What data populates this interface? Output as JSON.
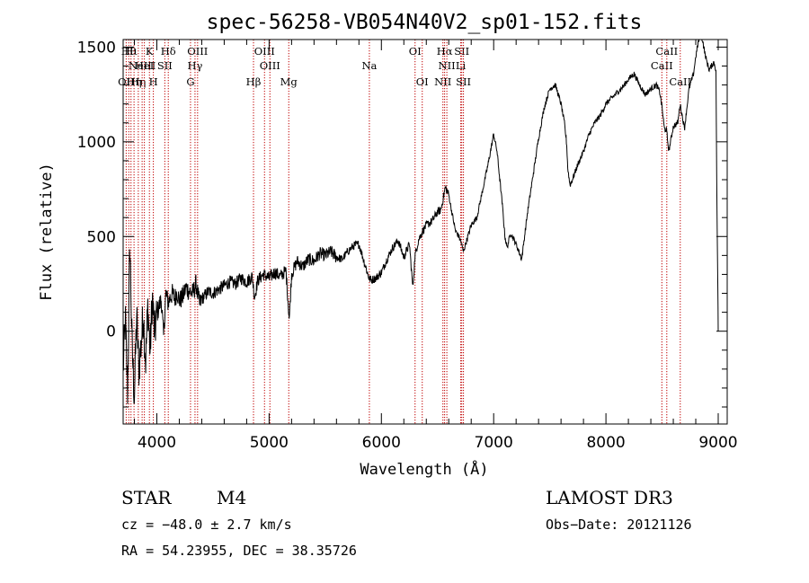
{
  "chart_data": {
    "type": "line",
    "title": "spec-56258-VB054N40V2_sp01-152.fits",
    "xlabel": "Wavelength (Å)",
    "ylabel": "Flux (relative)",
    "xlim": [
      3700,
      9080
    ],
    "ylim": [
      -490,
      1540
    ],
    "xticks": [
      4000,
      5000,
      6000,
      7000,
      8000,
      9000
    ],
    "xtick_labels": [
      "4000",
      "5000",
      "6000",
      "7000",
      "8000",
      "9000"
    ],
    "yticks": [
      0,
      500,
      1000,
      1500
    ],
    "ytick_labels": [
      "0",
      "500",
      "1000",
      "1500"
    ],
    "series": [
      {
        "name": "flux",
        "x": [
          3700,
          3720,
          3740,
          3760,
          3780,
          3800,
          3820,
          3840,
          3860,
          3880,
          3900,
          3920,
          3940,
          3960,
          3980,
          4000,
          4020,
          4040,
          4060,
          4080,
          4100,
          4120,
          4140,
          4160,
          4180,
          4200,
          4230,
          4260,
          4290,
          4320,
          4350,
          4380,
          4400,
          4430,
          4460,
          4500,
          4550,
          4600,
          4650,
          4700,
          4750,
          4800,
          4850,
          4870,
          4900,
          4950,
          5000,
          5050,
          5100,
          5150,
          5180,
          5200,
          5250,
          5300,
          5350,
          5400,
          5450,
          5500,
          5550,
          5600,
          5650,
          5700,
          5750,
          5800,
          5850,
          5890,
          5910,
          5950,
          6000,
          6050,
          6100,
          6150,
          6200,
          6250,
          6280,
          6300,
          6330,
          6360,
          6400,
          6450,
          6500,
          6530,
          6550,
          6570,
          6600,
          6630,
          6660,
          6690,
          6710,
          6730,
          6760,
          6800,
          6850,
          6900,
          6950,
          7000,
          7030,
          7050,
          7080,
          7100,
          7120,
          7150,
          7200,
          7250,
          7300,
          7350,
          7400,
          7450,
          7500,
          7550,
          7600,
          7630,
          7650,
          7660,
          7680,
          7700,
          7750,
          7800,
          7850,
          7900,
          7950,
          8000,
          8050,
          8100,
          8150,
          8200,
          8250,
          8300,
          8350,
          8400,
          8450,
          8480,
          8500,
          8520,
          8540,
          8560,
          8600,
          8640,
          8660,
          8700,
          8740,
          8780,
          8800,
          8820,
          8840,
          8860,
          8880,
          8900,
          8920,
          8940,
          8960,
          8980,
          8985,
          9000
        ],
        "y": [
          -200,
          60,
          -330,
          470,
          -90,
          -350,
          80,
          -200,
          -70,
          100,
          -170,
          140,
          -110,
          180,
          -20,
          90,
          130,
          170,
          -30,
          200,
          150,
          180,
          200,
          170,
          210,
          160,
          180,
          230,
          210,
          200,
          250,
          140,
          170,
          190,
          210,
          200,
          220,
          240,
          260,
          250,
          280,
          260,
          290,
          180,
          270,
          300,
          280,
          310,
          290,
          320,
          60,
          300,
          370,
          340,
          380,
          370,
          410,
          400,
          420,
          390,
          380,
          420,
          450,
          460,
          360,
          280,
          270,
          280,
          310,
          380,
          440,
          480,
          390,
          460,
          230,
          400,
          480,
          520,
          560,
          580,
          630,
          640,
          700,
          760,
          720,
          620,
          530,
          500,
          470,
          420,
          480,
          560,
          600,
          740,
          880,
          1040,
          950,
          830,
          650,
          500,
          440,
          520,
          460,
          380,
          620,
          820,
          1020,
          1180,
          1280,
          1300,
          1200,
          1100,
          990,
          860,
          770,
          800,
          880,
          950,
          1040,
          1100,
          1140,
          1200,
          1230,
          1260,
          1290,
          1330,
          1360,
          1300,
          1250,
          1280,
          1300,
          1260,
          1180,
          1070,
          1060,
          950,
          1080,
          1100,
          1200,
          1070,
          1280,
          1360,
          1450,
          1520,
          1560,
          1540,
          1470,
          1420,
          1380,
          1400,
          1420,
          1380,
          900,
          0
        ]
      }
    ],
    "lines": [
      {
        "wl": 3727,
        "label": "OII",
        "row": 3
      },
      {
        "wl": 3750,
        "label": "Hθ",
        "row": 1
      },
      {
        "wl": 3770,
        "label": "Hι",
        "row": 1
      },
      {
        "wl": 3797,
        "label": "Hη",
        "row": 3
      },
      {
        "wl": 3835,
        "label": "Hη",
        "row": 3
      },
      {
        "wl": 3869,
        "label": "NeIII",
        "row": 2
      },
      {
        "wl": 3889,
        "label": "HeI",
        "row": 2
      },
      {
        "wl": 3934,
        "label": "K",
        "row": 1
      },
      {
        "wl": 3969,
        "label": "H",
        "row": 3
      },
      {
        "wl": 4071,
        "label": "SII",
        "row": 2
      },
      {
        "wl": 4102,
        "label": "Hδ",
        "row": 1
      },
      {
        "wl": 4300,
        "label": "G",
        "row": 3
      },
      {
        "wl": 4340,
        "label": "Hγ",
        "row": 2
      },
      {
        "wl": 4363,
        "label": "OIII",
        "row": 1
      },
      {
        "wl": 4861,
        "label": "Hβ",
        "row": 3
      },
      {
        "wl": 4959,
        "label": "OIII",
        "row": 1
      },
      {
        "wl": 5007,
        "label": "OIII",
        "row": 2
      },
      {
        "wl": 5175,
        "label": "Mg",
        "row": 3
      },
      {
        "wl": 5893,
        "label": "Na",
        "row": 2
      },
      {
        "wl": 6300,
        "label": "OI",
        "row": 1
      },
      {
        "wl": 6364,
        "label": "OI",
        "row": 3
      },
      {
        "wl": 6548,
        "label": "NII",
        "row": 3
      },
      {
        "wl": 6563,
        "label": "Hα",
        "row": 1
      },
      {
        "wl": 6583,
        "label": "NII",
        "row": 2
      },
      {
        "wl": 6707,
        "label": "Li",
        "row": 2
      },
      {
        "wl": 6716,
        "label": "SII",
        "row": 1
      },
      {
        "wl": 6731,
        "label": "SII",
        "row": 3
      },
      {
        "wl": 8498,
        "label": "CaII",
        "row": 2
      },
      {
        "wl": 8542,
        "label": "CaII",
        "row": 1
      },
      {
        "wl": 8662,
        "label": "CaII",
        "row": 3
      }
    ]
  },
  "info": {
    "class": "STAR",
    "subclass": "M4",
    "survey": "LAMOST DR3",
    "cz": "cz = −48.0 ± 2.7 km/s",
    "obs_date": "Obs−Date: 20121126",
    "coords": "RA =  54.23955, DEC =  38.35726"
  }
}
